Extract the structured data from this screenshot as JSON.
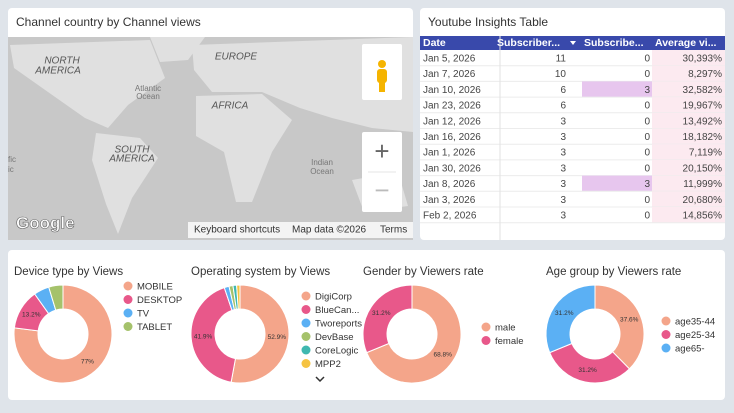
{
  "map": {
    "title": "Channel country by Channel views",
    "labels": [
      "NORTH",
      "AMERICA",
      "EUROPE",
      "Atlantic",
      "Ocean",
      "AFRICA",
      "SOUTH",
      "AMERICA",
      "Indian",
      "Ocean",
      "fic",
      "ic"
    ],
    "google": "Google",
    "footer": [
      "Keyboard shortcuts",
      "Map data ©2026",
      "Terms"
    ],
    "zoom_in": "+",
    "zoom_out": "−"
  },
  "table": {
    "title": "Youtube Insights Table",
    "columns": [
      "Date",
      "Subscriber...",
      "Subscribe...",
      "Average vi..."
    ],
    "rows": [
      [
        "Jan 5, 2026",
        "11",
        "0",
        "30,393%"
      ],
      [
        "Jan 7, 2026",
        "10",
        "0",
        "8,297%"
      ],
      [
        "Jan 10, 2026",
        "6",
        "3",
        "32,582%"
      ],
      [
        "Jan 23, 2026",
        "6",
        "0",
        "19,967%"
      ],
      [
        "Jan 12, 2026",
        "3",
        "0",
        "13,492%"
      ],
      [
        "Jan 16, 2026",
        "3",
        "0",
        "18,182%"
      ],
      [
        "Jan 1, 2026",
        "3",
        "0",
        "7,119%"
      ],
      [
        "Jan 30, 2026",
        "3",
        "0",
        "20,150%"
      ],
      [
        "Jan 8, 2026",
        "3",
        "3",
        "11,999%"
      ],
      [
        "Jan 3, 2026",
        "3",
        "0",
        "20,680%"
      ],
      [
        "Feb 2, 2026",
        "3",
        "0",
        "14,856%"
      ]
    ]
  },
  "chart_data": [
    {
      "type": "pie",
      "title": "Device type by Views",
      "categories": [
        "MOBILE",
        "DESKTOP",
        "TV",
        "TABLET"
      ],
      "values": [
        77,
        13.2,
        5.1,
        4.7
      ],
      "value_labels": [
        "77%",
        "13.2%",
        null,
        null
      ],
      "colors": [
        "#f4a58a",
        "#e8588a",
        "#5bb0f4",
        "#a5c26b"
      ]
    },
    {
      "type": "pie",
      "title": "Operating system by Views",
      "categories": [
        "DigiCorp",
        "BlueCan...",
        "Tworeports",
        "DevBase",
        "CoreLogic",
        "MPP2"
      ],
      "values": [
        52.9,
        41.9,
        1.6,
        1.3,
        1.2,
        1.1
      ],
      "value_labels": [
        "52.9%",
        "41.9%",
        null,
        null,
        null,
        null
      ],
      "colors": [
        "#f4a58a",
        "#e8588a",
        "#5bb0f4",
        "#a5c26b",
        "#3fb8b0",
        "#f5c342"
      ]
    },
    {
      "type": "pie",
      "title": "Gender by Viewers rate",
      "categories": [
        "male",
        "female"
      ],
      "values": [
        68.8,
        31.2
      ],
      "value_labels": [
        "68.8%",
        "31.2%"
      ],
      "colors": [
        "#f4a58a",
        "#e8588a"
      ]
    },
    {
      "type": "pie",
      "title": "Age group by Viewers rate",
      "categories": [
        "age35-44",
        "age25-34",
        "age65-"
      ],
      "values": [
        37.6,
        31.2,
        31.2
      ],
      "value_labels": [
        "37.6%",
        "31.2%",
        "31.2%"
      ],
      "colors": [
        "#f4a58a",
        "#e8588a",
        "#5bb0f4"
      ]
    }
  ]
}
